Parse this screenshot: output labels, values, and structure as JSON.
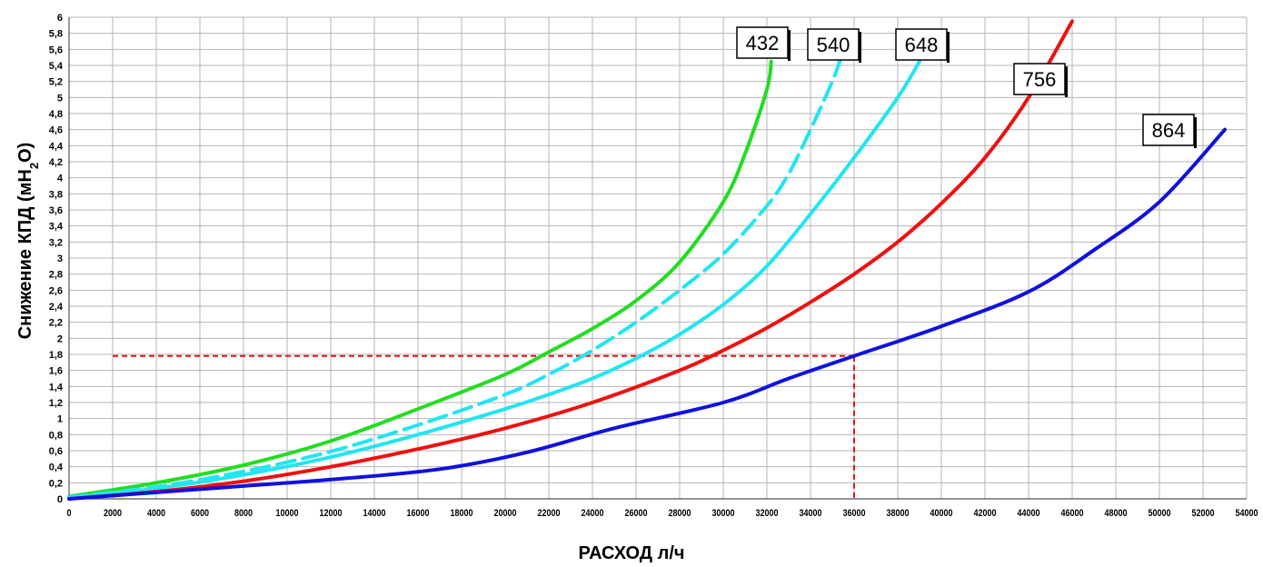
{
  "chart_data": {
    "type": "line",
    "title": "",
    "xlabel": "РАСХОД л/ч",
    "ylabel_main": "Снижение КПД (мН",
    "ylabel_sub": "2",
    "ylabel_end": "O)",
    "xlim": [
      0,
      54000
    ],
    "ylim": [
      0,
      6
    ],
    "x_ticks": [
      0,
      2000,
      4000,
      6000,
      8000,
      10000,
      12000,
      14000,
      16000,
      18000,
      20000,
      22000,
      24000,
      26000,
      28000,
      30000,
      32000,
      34000,
      36000,
      38000,
      40000,
      42000,
      44000,
      46000,
      48000,
      50000,
      52000,
      54000
    ],
    "y_ticks": [
      0,
      0.2,
      0.4,
      0.6,
      0.8,
      1,
      1.2,
      1.4,
      1.6,
      1.8,
      2,
      2.2,
      2.4,
      2.6,
      2.8,
      3,
      3.2,
      3.4,
      3.6,
      3.8,
      4,
      4.2,
      4.4,
      4.6,
      4.8,
      5,
      5.2,
      5.4,
      5.6,
      5.8,
      6
    ],
    "y_tick_labels": [
      "0",
      "0,2",
      "0,4",
      "0,6",
      "0,8",
      "1",
      "1,2",
      "1,4",
      "1,6",
      "1,8",
      "2",
      "2,2",
      "2,4",
      "2,6",
      "2,8",
      "3",
      "3,2",
      "3,4",
      "3,6",
      "3,8",
      "4",
      "4,2",
      "4,4",
      "4,6",
      "4,8",
      "5",
      "5,2",
      "5,4",
      "5,6",
      "5,8",
      "6"
    ],
    "grid": true,
    "series": [
      {
        "name": "432",
        "color": "#22dd22",
        "dashed": false,
        "x": [
          0,
          4000,
          8000,
          12000,
          16000,
          20000,
          22000,
          24000,
          26000,
          28000,
          30000,
          31000,
          32000,
          32200
        ],
        "y": [
          0.03,
          0.2,
          0.42,
          0.72,
          1.12,
          1.55,
          1.83,
          2.12,
          2.47,
          2.95,
          3.7,
          4.3,
          5.1,
          5.45
        ]
      },
      {
        "name": "540",
        "color": "#22e5f0",
        "dashed": true,
        "x": [
          0,
          4000,
          8000,
          12000,
          16000,
          20000,
          22000,
          24000,
          26000,
          28000,
          30000,
          32000,
          33000,
          34000,
          35000,
          35400
        ],
        "y": [
          0.02,
          0.15,
          0.34,
          0.59,
          0.92,
          1.3,
          1.55,
          1.85,
          2.2,
          2.6,
          3.05,
          3.65,
          4.05,
          4.6,
          5.2,
          5.5
        ]
      },
      {
        "name": "648",
        "color": "#22e5f0",
        "dashed": false,
        "x": [
          0,
          4000,
          8000,
          12000,
          16000,
          20000,
          22000,
          24000,
          26000,
          28000,
          30000,
          32000,
          34000,
          36000,
          38000,
          39000
        ],
        "y": [
          0.01,
          0.13,
          0.3,
          0.52,
          0.8,
          1.12,
          1.3,
          1.5,
          1.75,
          2.05,
          2.42,
          2.9,
          3.55,
          4.25,
          5.0,
          5.45
        ]
      },
      {
        "name": "756",
        "color": "#ee1111",
        "dashed": false,
        "x": [
          0,
          4000,
          8000,
          12000,
          16000,
          20000,
          24000,
          28000,
          30000,
          32000,
          34000,
          36000,
          38000,
          40000,
          42000,
          44000,
          46000
        ],
        "y": [
          0,
          0.09,
          0.22,
          0.4,
          0.62,
          0.88,
          1.2,
          1.6,
          1.85,
          2.13,
          2.45,
          2.8,
          3.2,
          3.68,
          4.25,
          5.0,
          5.95
        ]
      },
      {
        "name": "864",
        "color": "#1111dd",
        "dashed": false,
        "x": [
          0,
          4000,
          8000,
          12000,
          17000,
          21000,
          25000,
          30000,
          33000,
          36000,
          40000,
          44000,
          47000,
          50000,
          53000
        ],
        "y": [
          0,
          0.08,
          0.16,
          0.24,
          0.37,
          0.58,
          0.88,
          1.2,
          1.5,
          1.78,
          2.15,
          2.58,
          3.1,
          3.7,
          4.6
        ]
      }
    ],
    "annotation": {
      "x": 36000,
      "y": 1.78,
      "color": "#ee1111"
    },
    "legend": "labels-at-curve-ends"
  }
}
